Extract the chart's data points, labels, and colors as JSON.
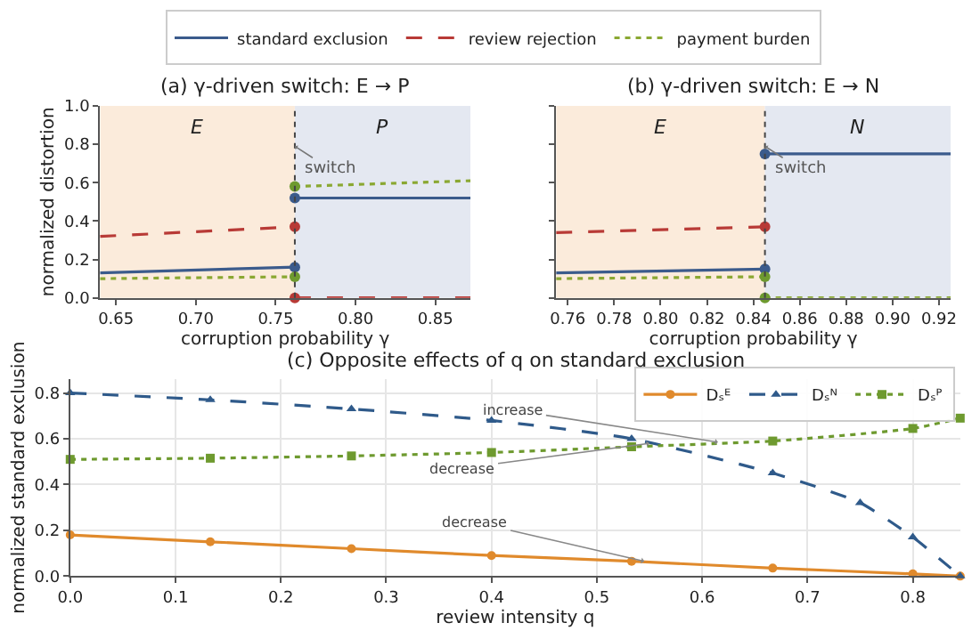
{
  "chart_data": [
    {
      "type": "line",
      "title": "(a) γ-driven switch: E → P",
      "xlabel": "corruption probability γ",
      "ylabel": "normalized distortion",
      "xlim": [
        0.64,
        0.872
      ],
      "xticks": [
        {
          "value": 0.65,
          "label": "0.65"
        },
        {
          "value": 0.7,
          "label": "0.70"
        },
        {
          "value": 0.75,
          "label": "0.75"
        },
        {
          "value": 0.8,
          "label": "0.80"
        },
        {
          "value": 0.85,
          "label": "0.85"
        }
      ],
      "ylim": [
        0,
        1.0
      ],
      "yticks": [
        {
          "value": 0,
          "label": "0.0"
        },
        0.2,
        0.4,
        0.6,
        0.8,
        {
          "value": 1,
          "label": "1.0"
        }
      ],
      "legend": "top",
      "bands": [
        {
          "axis": "x",
          "from": 0.64,
          "to": 0.762,
          "label": "E",
          "color": "#fbebdb"
        },
        {
          "axis": "x",
          "from": 0.762,
          "to": 0.872,
          "label": "P",
          "color": "#e4e8f1"
        }
      ],
      "ref_lines": [
        {
          "axis": "x",
          "value": 0.762,
          "label": "switch",
          "color": "#444444",
          "line_style": "dotted"
        }
      ],
      "series": [
        {
          "name": "standard exclusion",
          "color": "#3b5b8c",
          "line_style": "solid",
          "marker": "none",
          "x": [
            0.64,
            0.762
          ],
          "values": [
            0.13,
            0.16
          ]
        },
        {
          "name": "review rejection",
          "color": "#b83a36",
          "line_style": "dashed",
          "marker": "none",
          "x": [
            0.64,
            0.762
          ],
          "values": [
            0.32,
            0.37
          ]
        },
        {
          "name": "payment burden",
          "color": "#8aa832",
          "line_style": "dotted",
          "marker": "none",
          "x": [
            0.64,
            0.762
          ],
          "values": [
            0.1,
            0.11
          ]
        },
        {
          "color": "#3b5b8c",
          "line_style": "solid",
          "marker": "none",
          "x": [
            0.762,
            0.872
          ],
          "values": [
            0.52,
            0.52
          ]
        },
        {
          "color": "#b83a36",
          "line_style": "dashed",
          "marker": "none",
          "x": [
            0.762,
            0.872
          ],
          "values": [
            0.0,
            0.0
          ]
        },
        {
          "color": "#8aa832",
          "line_style": "dotted",
          "marker": "none",
          "x": [
            0.762,
            0.872
          ],
          "values": [
            0.58,
            0.61
          ]
        },
        {
          "type": "scatter",
          "marker": "circle",
          "x": [
            0.762,
            0.762,
            0.762,
            0.762,
            0.762,
            0.762
          ],
          "values": [
            0.16,
            0.52,
            0.37,
            0.0,
            0.11,
            0.58
          ],
          "colors": [
            "#3b5b8c",
            "#3b5b8c",
            "#b83a36",
            "#b83a36",
            "#6e9a2f",
            "#6e9a2f"
          ]
        }
      ]
    },
    {
      "type": "line",
      "title": "(b) γ-driven switch: E → N",
      "xlabel": "corruption probability γ",
      "xlim": [
        0.755,
        0.925
      ],
      "xticks": [
        0.76,
        0.78,
        {
          "value": 0.8,
          "label": "0.80"
        },
        0.82,
        0.84,
        0.86,
        0.88,
        {
          "value": 0.9,
          "label": "0.90"
        },
        0.92
      ],
      "ylim": [
        0,
        1.0
      ],
      "yticks": [
        {
          "value": 0,
          "label": null
        },
        {
          "value": 0.2,
          "label": null
        },
        {
          "value": 0.4,
          "label": null
        },
        {
          "value": 0.6,
          "label": null
        },
        {
          "value": 0.8,
          "label": null
        },
        {
          "value": 1,
          "label": null
        }
      ],
      "tick_labels": "x",
      "legend": "top",
      "bands": [
        {
          "axis": "x",
          "from": 0.755,
          "to": 0.845,
          "label": "E",
          "color": "#fbebdb"
        },
        {
          "axis": "x",
          "from": 0.845,
          "to": 0.925,
          "label": "N",
          "color": "#e4e8f1"
        }
      ],
      "ref_lines": [
        {
          "axis": "x",
          "value": 0.845,
          "label": "switch",
          "color": "#444444",
          "line_style": "dotted"
        }
      ],
      "series": [
        {
          "color": "#3b5b8c",
          "line_style": "solid",
          "marker": "none",
          "x": [
            0.755,
            0.845
          ],
          "values": [
            0.13,
            0.15
          ]
        },
        {
          "color": "#b83a36",
          "line_style": "dashed",
          "marker": "none",
          "x": [
            0.755,
            0.845
          ],
          "values": [
            0.34,
            0.37
          ]
        },
        {
          "color": "#8aa832",
          "line_style": "dotted",
          "marker": "none",
          "x": [
            0.755,
            0.845
          ],
          "values": [
            0.1,
            0.11
          ]
        },
        {
          "color": "#3b5b8c",
          "line_style": "solid",
          "marker": "none",
          "x": [
            0.845,
            0.925
          ],
          "values": [
            0.75,
            0.75
          ]
        },
        {
          "color": "#8aa832",
          "line_style": "dotted",
          "marker": "none",
          "x": [
            0.845,
            0.925
          ],
          "values": [
            0.0,
            0.0
          ]
        },
        {
          "type": "scatter",
          "marker": "circle",
          "x": [
            0.845,
            0.845,
            0.845,
            0.845,
            0.845
          ],
          "values": [
            0.15,
            0.75,
            0.37,
            0.11,
            0.0
          ],
          "colors": [
            "#3b5b8c",
            "#3b5b8c",
            "#b83a36",
            "#6e9a2f",
            "#6e9a2f"
          ]
        }
      ]
    },
    {
      "type": "line",
      "title": "(c) Opposite effects of q on standard exclusion",
      "xlabel": "review intensity q",
      "ylabel": "normalized standard exclusion",
      "xlim": [
        0,
        0.845
      ],
      "xticks": [
        {
          "value": 0,
          "label": "0.0"
        },
        0.1,
        0.2,
        0.3,
        0.4,
        0.5,
        0.6,
        0.7,
        0.8
      ],
      "ylim": [
        0,
        0.86
      ],
      "yticks": [
        {
          "value": 0,
          "label": "0.0"
        },
        0.2,
        0.4,
        0.6,
        0.8
      ],
      "grid": true,
      "legend": "top right",
      "annotations": [
        {
          "text": "increase",
          "x": 0.615,
          "y": 0.585
        },
        {
          "text": "decrease",
          "x": 0.55,
          "y": 0.58
        },
        {
          "text": "decrease",
          "x": 0.545,
          "y": 0.065
        }
      ],
      "series": [
        {
          "name": "Dₛᴱ",
          "color": "#e08a2c",
          "line_style": "solid",
          "marker": "circle",
          "x": [
            0.0,
            0.133,
            0.267,
            0.4,
            0.533,
            0.667,
            0.8,
            0.845
          ],
          "values": [
            0.18,
            0.15,
            0.12,
            0.09,
            0.065,
            0.035,
            0.01,
            0.0
          ]
        },
        {
          "name": "Dₛᴺ",
          "color": "#2f5a8a",
          "line_style": "dashed",
          "marker": "triangle",
          "x": [
            0.0,
            0.133,
            0.267,
            0.4,
            0.533,
            0.667,
            0.75,
            0.8,
            0.845
          ],
          "values": [
            0.8,
            0.77,
            0.73,
            0.68,
            0.6,
            0.45,
            0.32,
            0.17,
            0.0
          ]
        },
        {
          "name": "Dₛᴾ",
          "color": "#6e9a2f",
          "line_style": "dotted",
          "marker": "square",
          "x": [
            0.0,
            0.133,
            0.267,
            0.4,
            0.533,
            0.667,
            0.8,
            0.845
          ],
          "values": [
            0.51,
            0.515,
            0.525,
            0.54,
            0.565,
            0.59,
            0.645,
            0.69
          ]
        }
      ]
    }
  ]
}
